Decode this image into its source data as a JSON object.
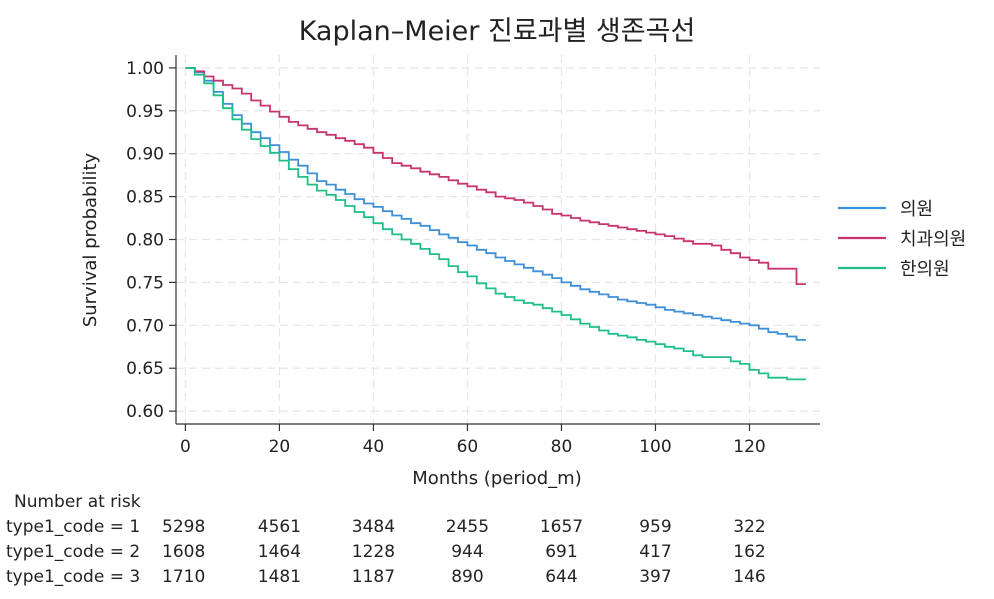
{
  "chart_data": {
    "type": "line",
    "title": "Kaplan–Meier 진료과별 생존곡선",
    "xlabel": "Months (period_m)",
    "ylabel": "Survival probability",
    "xlim": [
      -2,
      135
    ],
    "ylim": [
      0.585,
      1.015
    ],
    "x_ticks": [
      0,
      20,
      40,
      60,
      80,
      100,
      120
    ],
    "y_ticks": [
      0.6,
      0.65,
      0.7,
      0.75,
      0.8,
      0.85,
      0.9,
      0.95,
      1.0
    ],
    "y_tick_labels": [
      "0.60",
      "0.65",
      "0.70",
      "0.75",
      "0.80",
      "0.85",
      "0.90",
      "0.95",
      "1.00"
    ],
    "grid": true,
    "legend_position": "right",
    "series": [
      {
        "name": "의원",
        "color": "#3c8fd8",
        "x": [
          0,
          2,
          4,
          6,
          8,
          10,
          12,
          14,
          16,
          18,
          20,
          22,
          24,
          26,
          28,
          30,
          32,
          34,
          36,
          38,
          40,
          42,
          44,
          46,
          48,
          50,
          52,
          54,
          56,
          58,
          60,
          62,
          64,
          66,
          68,
          70,
          72,
          74,
          76,
          78,
          80,
          82,
          84,
          86,
          88,
          90,
          92,
          94,
          96,
          98,
          100,
          102,
          104,
          106,
          108,
          110,
          112,
          114,
          116,
          118,
          120,
          122,
          124,
          126,
          128,
          130,
          132
        ],
        "y": [
          1.0,
          0.995,
          0.985,
          0.972,
          0.958,
          0.945,
          0.935,
          0.925,
          0.918,
          0.91,
          0.902,
          0.893,
          0.886,
          0.877,
          0.868,
          0.864,
          0.858,
          0.853,
          0.847,
          0.842,
          0.838,
          0.833,
          0.828,
          0.824,
          0.819,
          0.816,
          0.811,
          0.806,
          0.802,
          0.797,
          0.793,
          0.788,
          0.784,
          0.779,
          0.775,
          0.771,
          0.767,
          0.763,
          0.759,
          0.755,
          0.75,
          0.746,
          0.742,
          0.739,
          0.736,
          0.733,
          0.73,
          0.728,
          0.726,
          0.724,
          0.721,
          0.718,
          0.716,
          0.714,
          0.712,
          0.71,
          0.708,
          0.706,
          0.704,
          0.702,
          0.7,
          0.696,
          0.692,
          0.69,
          0.687,
          0.683,
          0.683
        ]
      },
      {
        "name": "치과의원",
        "color": "#c8356e",
        "x": [
          0,
          2,
          4,
          6,
          8,
          10,
          12,
          14,
          16,
          18,
          20,
          22,
          24,
          26,
          28,
          30,
          32,
          34,
          36,
          38,
          40,
          42,
          44,
          46,
          48,
          50,
          52,
          54,
          56,
          58,
          60,
          62,
          64,
          66,
          68,
          70,
          72,
          74,
          76,
          78,
          80,
          82,
          84,
          86,
          88,
          90,
          92,
          94,
          96,
          98,
          100,
          102,
          104,
          106,
          108,
          110,
          112,
          114,
          116,
          118,
          120,
          122,
          124,
          126,
          128,
          130,
          132
        ],
        "y": [
          1.0,
          0.996,
          0.99,
          0.985,
          0.98,
          0.976,
          0.97,
          0.962,
          0.956,
          0.949,
          0.943,
          0.937,
          0.933,
          0.929,
          0.925,
          0.922,
          0.918,
          0.915,
          0.911,
          0.907,
          0.901,
          0.895,
          0.889,
          0.886,
          0.883,
          0.879,
          0.876,
          0.873,
          0.869,
          0.865,
          0.862,
          0.858,
          0.855,
          0.85,
          0.848,
          0.846,
          0.843,
          0.839,
          0.835,
          0.83,
          0.828,
          0.825,
          0.822,
          0.82,
          0.818,
          0.816,
          0.814,
          0.812,
          0.81,
          0.808,
          0.806,
          0.804,
          0.801,
          0.798,
          0.795,
          0.795,
          0.793,
          0.788,
          0.784,
          0.779,
          0.776,
          0.773,
          0.766,
          0.766,
          0.766,
          0.748,
          0.748
        ]
      },
      {
        "name": "한의원",
        "color": "#1fbf8a",
        "x": [
          0,
          2,
          4,
          6,
          8,
          10,
          12,
          14,
          16,
          18,
          20,
          22,
          24,
          26,
          28,
          30,
          32,
          34,
          36,
          38,
          40,
          42,
          44,
          46,
          48,
          50,
          52,
          54,
          56,
          58,
          60,
          62,
          64,
          66,
          68,
          70,
          72,
          74,
          76,
          78,
          80,
          82,
          84,
          86,
          88,
          90,
          92,
          94,
          96,
          98,
          100,
          102,
          104,
          106,
          108,
          110,
          112,
          114,
          116,
          118,
          120,
          122,
          124,
          126,
          128,
          130,
          132
        ],
        "y": [
          1.0,
          0.992,
          0.982,
          0.968,
          0.953,
          0.94,
          0.928,
          0.917,
          0.909,
          0.901,
          0.892,
          0.882,
          0.873,
          0.864,
          0.857,
          0.852,
          0.846,
          0.839,
          0.832,
          0.826,
          0.819,
          0.812,
          0.806,
          0.8,
          0.795,
          0.789,
          0.783,
          0.777,
          0.769,
          0.762,
          0.757,
          0.749,
          0.743,
          0.737,
          0.733,
          0.729,
          0.726,
          0.724,
          0.72,
          0.716,
          0.712,
          0.707,
          0.702,
          0.698,
          0.694,
          0.69,
          0.688,
          0.686,
          0.683,
          0.681,
          0.678,
          0.675,
          0.673,
          0.67,
          0.665,
          0.663,
          0.663,
          0.663,
          0.658,
          0.655,
          0.648,
          0.644,
          0.639,
          0.639,
          0.637,
          0.637,
          0.637
        ]
      }
    ],
    "risk_table": {
      "heading": "Number at risk",
      "times": [
        0,
        20,
        40,
        60,
        80,
        100,
        120
      ],
      "rows": [
        {
          "label": "type1_code = 1",
          "values": [
            "5298",
            "4561",
            "3484",
            "2455",
            "1657",
            "959",
            "322"
          ]
        },
        {
          "label": "type1_code = 2",
          "values": [
            "1608",
            "1464",
            "1228",
            "944",
            "691",
            "417",
            "162"
          ]
        },
        {
          "label": "type1_code = 3",
          "values": [
            "1710",
            "1481",
            "1187",
            "890",
            "644",
            "397",
            "146"
          ]
        }
      ]
    }
  }
}
